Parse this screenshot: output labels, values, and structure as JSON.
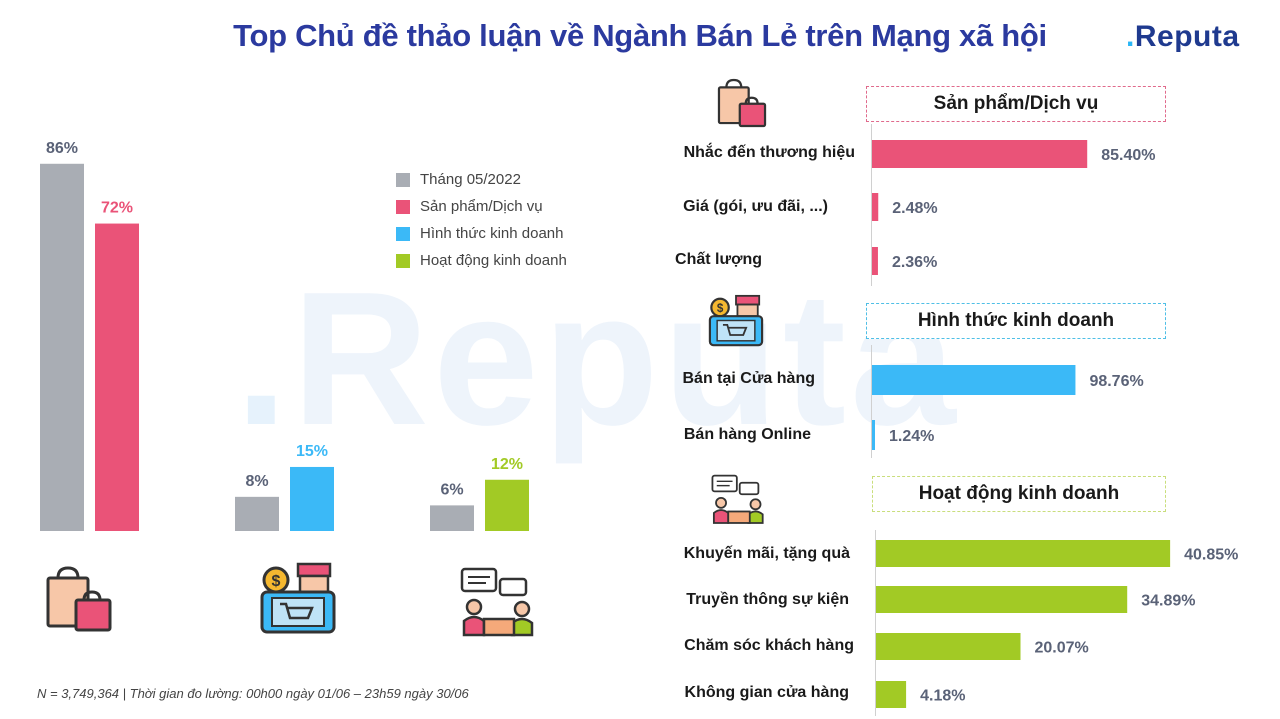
{
  "title": "Top Chủ đề thảo luận về Ngành Bán Lẻ trên Mạng xã hội",
  "logo": {
    "dot": ".",
    "text": "Reputa"
  },
  "watermark": "Reputa",
  "footnote": "N = 3,749,364 | Thời gian đo lường: 00h00 ngày 01/06 – 23h59 ngày 30/06",
  "colors": {
    "grey": "#a9adb4",
    "pink": "#ea5378",
    "blue": "#3bb9f7",
    "green": "#a2ca25",
    "value_text": "#5a6277"
  },
  "legend": [
    {
      "label": "Tháng 05/2022",
      "color": "#a9adb4"
    },
    {
      "label": "Sản phẩm/Dịch vụ",
      "color": "#ea5378"
    },
    {
      "label": "Hình thức kinh doanh",
      "color": "#3bb9f7"
    },
    {
      "label": "Hoạt động kinh doanh",
      "color": "#a2ca25"
    }
  ],
  "icons": {
    "left": [
      "shopping-bags-icon",
      "online-store-icon",
      "meeting-discussion-icon"
    ],
    "right": [
      "shopping-bags-icon",
      "online-store-icon",
      "meeting-discussion-icon"
    ]
  },
  "chart_data": [
    {
      "type": "bar",
      "unit": "%",
      "groups": [
        {
          "values": [
            {
              "series": "Tháng 05/2022",
              "value": 86,
              "label": "86%",
              "color": "#a9adb4"
            },
            {
              "series": "Sản phẩm/Dịch vụ",
              "value": 72,
              "label": "72%",
              "color": "#ea5378"
            }
          ]
        },
        {
          "values": [
            {
              "series": "Tháng 05/2022",
              "value": 8,
              "label": "8%",
              "color": "#a9adb4"
            },
            {
              "series": "Hình thức kinh doanh",
              "value": 15,
              "label": "15%",
              "color": "#3bb9f7"
            }
          ]
        },
        {
          "values": [
            {
              "series": "Tháng 05/2022",
              "value": 6,
              "label": "6%",
              "color": "#a9adb4"
            },
            {
              "series": "Hoạt động kinh doanh",
              "value": 12,
              "label": "12%",
              "color": "#a2ca25"
            }
          ]
        }
      ]
    },
    {
      "type": "bar",
      "orientation": "horizontal",
      "title": "Sản phẩm/Dịch vụ",
      "color": "#ea5378",
      "categories": [
        "Nhắc đến thương hiệu",
        "Giá (gói, ưu đãi, ...)",
        "Chất lượng"
      ],
      "values": [
        85.4,
        2.48,
        2.36
      ],
      "labels": [
        "85.40%",
        "2.48%",
        "2.36%"
      ]
    },
    {
      "type": "bar",
      "orientation": "horizontal",
      "title": "Hình thức kinh doanh",
      "color": "#3bb9f7",
      "categories": [
        "Bán tại Cửa hàng",
        "Bán hàng Online"
      ],
      "values": [
        98.76,
        1.24
      ],
      "labels": [
        "98.76%",
        "1.24%"
      ]
    },
    {
      "type": "bar",
      "orientation": "horizontal",
      "title": "Hoạt động kinh doanh",
      "color": "#a2ca25",
      "categories": [
        "Khuyến mãi, tặng quà",
        "Truyền thông sự kiện",
        "Chăm sóc khách hàng",
        "Không gian cửa hàng"
      ],
      "values": [
        40.85,
        34.89,
        20.07,
        4.18
      ],
      "labels": [
        "40.85%",
        "34.89%",
        "20.07%",
        "4.18%"
      ]
    }
  ]
}
